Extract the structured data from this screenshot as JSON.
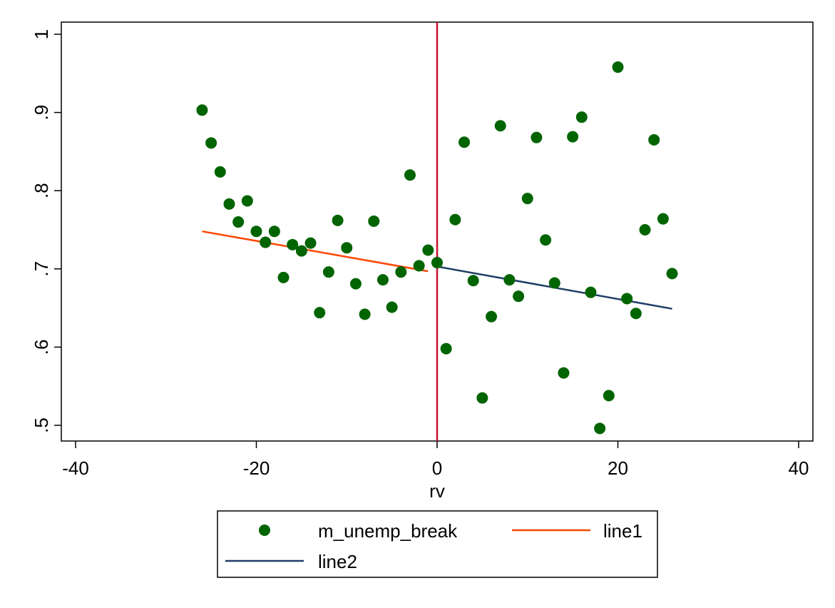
{
  "chart_data": {
    "type": "scatter",
    "title": "",
    "xlabel": "rv",
    "ylabel": "",
    "xlim": [
      -40,
      40
    ],
    "ylim": [
      0.5,
      1.0
    ],
    "x_ticks": [
      -40,
      -20,
      0,
      20,
      40
    ],
    "x_tick_labels": [
      "-40",
      "-20",
      "0",
      "20",
      "40"
    ],
    "y_ticks": [
      0.5,
      0.6,
      0.7,
      0.8,
      0.9,
      1.0
    ],
    "y_tick_labels": [
      ".5",
      ".6",
      ".7",
      ".8",
      ".9",
      "1"
    ],
    "grid": false,
    "cutoff_x": 0,
    "colors": {
      "scatter": "#006400",
      "line1": "#FF4500",
      "line2": "#1F3F66",
      "cutoff": "#C8102E"
    },
    "series": [
      {
        "name": "m_unemp_break",
        "kind": "scatter",
        "points": [
          [
            -26,
            0.903
          ],
          [
            -25,
            0.861
          ],
          [
            -24,
            0.824
          ],
          [
            -23,
            0.783
          ],
          [
            -22,
            0.76
          ],
          [
            -21,
            0.787
          ],
          [
            -20,
            0.748
          ],
          [
            -19,
            0.734
          ],
          [
            -18,
            0.748
          ],
          [
            -17,
            0.689
          ],
          [
            -16,
            0.731
          ],
          [
            -15,
            0.723
          ],
          [
            -14,
            0.733
          ],
          [
            -13,
            0.644
          ],
          [
            -12,
            0.696
          ],
          [
            -11,
            0.762
          ],
          [
            -10,
            0.727
          ],
          [
            -9,
            0.681
          ],
          [
            -8,
            0.642
          ],
          [
            -7,
            0.761
          ],
          [
            -6,
            0.686
          ],
          [
            -5,
            0.651
          ],
          [
            -4,
            0.696
          ],
          [
            -3,
            0.82
          ],
          [
            -2,
            0.704
          ],
          [
            -1,
            0.724
          ],
          [
            0,
            0.708
          ],
          [
            1,
            0.598
          ],
          [
            2,
            0.763
          ],
          [
            3,
            0.862
          ],
          [
            4,
            0.685
          ],
          [
            5,
            0.535
          ],
          [
            6,
            0.639
          ],
          [
            7,
            0.883
          ],
          [
            8,
            0.686
          ],
          [
            9,
            0.665
          ],
          [
            10,
            0.79
          ],
          [
            11,
            0.868
          ],
          [
            12,
            0.737
          ],
          [
            13,
            0.682
          ],
          [
            14,
            0.567
          ],
          [
            15,
            0.869
          ],
          [
            16,
            0.894
          ],
          [
            17,
            0.67
          ],
          [
            18,
            0.496
          ],
          [
            19,
            0.538
          ],
          [
            20,
            0.958
          ],
          [
            21,
            0.662
          ],
          [
            22,
            0.643
          ],
          [
            23,
            0.75
          ],
          [
            24,
            0.865
          ],
          [
            25,
            0.764
          ],
          [
            26,
            0.694
          ]
        ]
      },
      {
        "name": "line1",
        "kind": "line",
        "points": [
          [
            -26,
            0.748
          ],
          [
            -1,
            0.697
          ]
        ]
      },
      {
        "name": "line2",
        "kind": "line",
        "points": [
          [
            0,
            0.703
          ],
          [
            26,
            0.649
          ]
        ]
      }
    ],
    "legend": {
      "position": "bottom",
      "entries": [
        "m_unemp_break",
        "line1",
        "line2"
      ]
    }
  }
}
